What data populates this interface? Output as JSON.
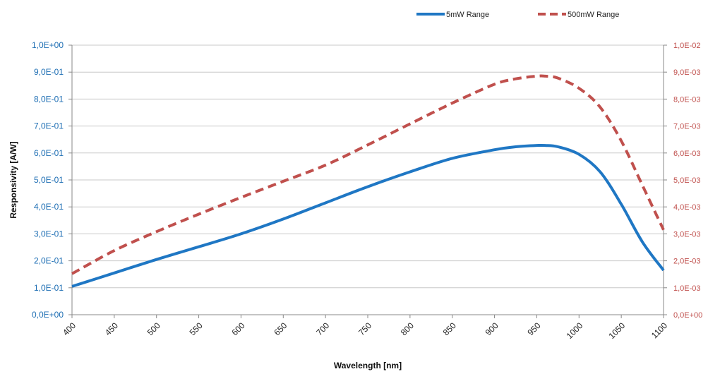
{
  "chart_data": {
    "type": "line",
    "xlabel": "Wavelength [nm]",
    "ylabel": "Responsivity [A/W]",
    "x_ticks": [
      "400",
      "450",
      "500",
      "550",
      "600",
      "650",
      "700",
      "750",
      "800",
      "850",
      "900",
      "950",
      "1000",
      "1050",
      "1100"
    ],
    "xlim": [
      400,
      1100
    ],
    "y_left": {
      "lim": [
        0,
        1.0
      ],
      "tick_values": [
        0,
        0.1,
        0.2,
        0.3,
        0.4,
        0.5,
        0.6,
        0.7,
        0.8,
        0.9,
        1.0
      ],
      "tick_labels": [
        "0,0E+00",
        "1,0E-01",
        "2,0E-01",
        "3,0E-01",
        "4,0E-01",
        "5,0E-01",
        "6,0E-01",
        "7,0E-01",
        "8,0E-01",
        "9,0E-01",
        "1,0E+00"
      ]
    },
    "y_right": {
      "lim": [
        0,
        0.01
      ],
      "tick_values": [
        0,
        0.001,
        0.002,
        0.003,
        0.004,
        0.005,
        0.006,
        0.007,
        0.008,
        0.009,
        0.01
      ],
      "tick_labels": [
        "0,0E+00",
        "1,0E-03",
        "2,0E-03",
        "3,0E-03",
        "4,0E-03",
        "5,0E-03",
        "6,0E-03",
        "7,0E-03",
        "8,0E-03",
        "9,0E-03",
        "1,0E-02"
      ]
    },
    "grid": "horizontal",
    "legend_position": "top-right",
    "series": [
      {
        "name": "5mW Range",
        "axis": "left",
        "color": "#1f77c4",
        "style": "solid",
        "x": [
          400,
          450,
          500,
          550,
          600,
          650,
          700,
          750,
          800,
          850,
          900,
          925,
          950,
          960,
          975,
          1000,
          1025,
          1050,
          1075,
          1100
        ],
        "y": [
          0.105,
          0.155,
          0.205,
          0.252,
          0.3,
          0.355,
          0.415,
          0.475,
          0.53,
          0.58,
          0.612,
          0.623,
          0.628,
          0.628,
          0.623,
          0.595,
          0.53,
          0.41,
          0.27,
          0.165
        ]
      },
      {
        "name": "500mW Range",
        "axis": "right",
        "color": "#c0504d",
        "style": "dashed",
        "x": [
          400,
          450,
          500,
          550,
          600,
          650,
          700,
          750,
          800,
          850,
          900,
          925,
          950,
          960,
          975,
          1000,
          1025,
          1050,
          1075,
          1100
        ],
        "y": [
          0.00152,
          0.00238,
          0.00308,
          0.00373,
          0.00435,
          0.00495,
          0.00555,
          0.0063,
          0.00708,
          0.00785,
          0.00855,
          0.00875,
          0.00885,
          0.00885,
          0.00878,
          0.0084,
          0.0077,
          0.00645,
          0.0048,
          0.00315
        ]
      }
    ]
  }
}
